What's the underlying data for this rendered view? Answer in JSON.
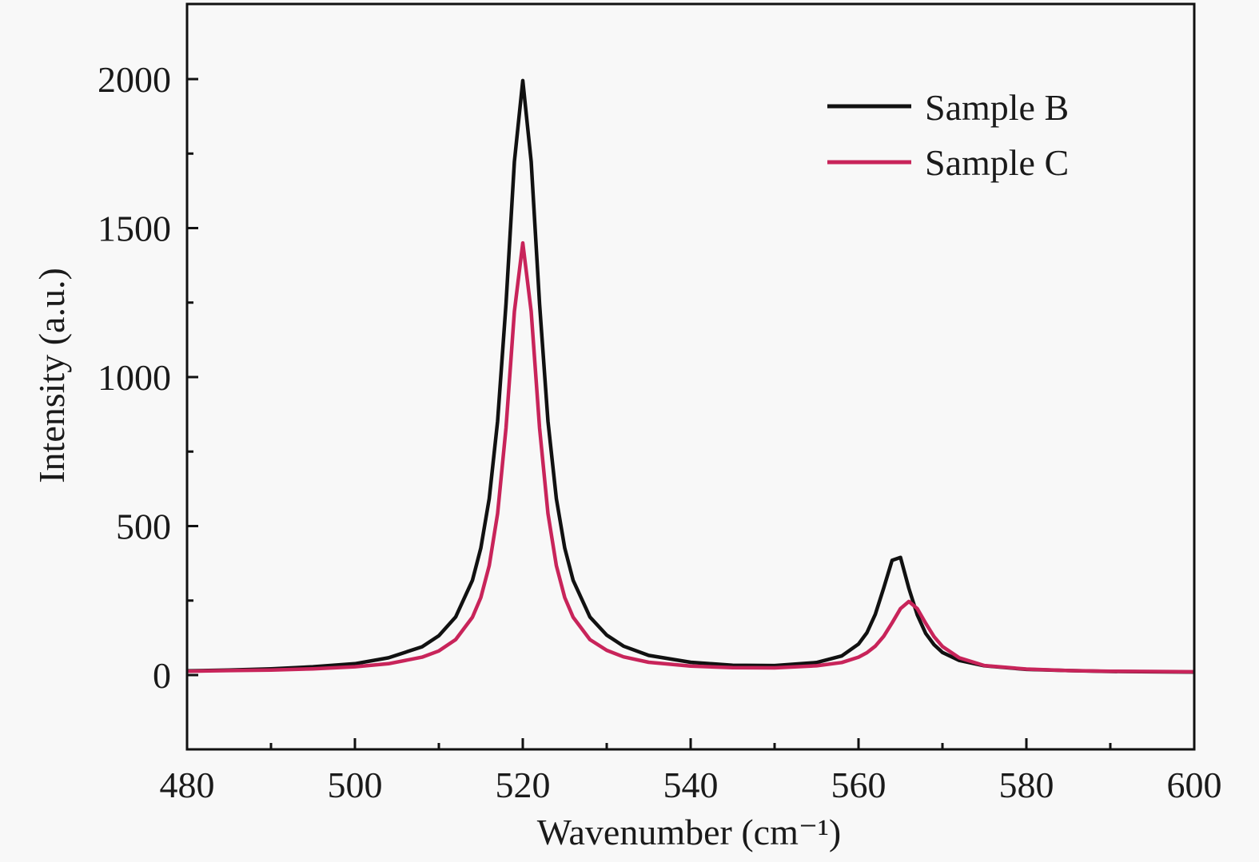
{
  "chart_data": {
    "type": "line",
    "title": "",
    "xlabel": "Wavenumber (cm⁻¹)",
    "ylabel": "Intensity (a.u.)",
    "xlim": [
      480,
      600
    ],
    "ylim": [
      -250,
      2250
    ],
    "xticks": [
      480,
      500,
      520,
      540,
      560,
      580,
      600
    ],
    "yticks": [
      0,
      500,
      1000,
      1500,
      2000
    ],
    "grid": false,
    "legend_position": "top-right",
    "x": [
      480,
      485,
      490,
      495,
      500,
      504,
      508,
      510,
      512,
      514,
      515,
      516,
      517,
      518,
      519,
      520,
      521,
      522,
      523,
      524,
      525,
      526,
      528,
      530,
      532,
      535,
      540,
      545,
      550,
      555,
      558,
      560,
      561,
      562,
      563,
      564,
      565,
      566,
      567,
      568,
      569,
      570,
      572,
      575,
      580,
      585,
      590,
      595,
      600
    ],
    "series": [
      {
        "name": "Sample B",
        "color": "#111111",
        "values": [
          14,
          17,
          21,
          28,
          38,
          58,
          95,
          132,
          195,
          318,
          426,
          592,
          852,
          1245,
          1723,
          1995,
          1723,
          1245,
          852,
          592,
          426,
          318,
          195,
          134,
          97,
          66,
          43,
          33,
          32,
          42,
          64,
          104,
          142,
          204,
          292,
          385,
          395,
          291,
          202,
          140,
          102,
          76,
          49,
          31,
          19,
          15,
          12,
          11,
          10
        ]
      },
      {
        "name": "Sample C",
        "color": "#c8245a",
        "values": [
          13,
          15,
          17,
          21,
          28,
          38,
          60,
          81,
          119,
          194,
          260,
          367,
          542,
          829,
          1220,
          1450,
          1220,
          829,
          542,
          367,
          260,
          194,
          119,
          83,
          61,
          43,
          30,
          25,
          24,
          31,
          42,
          60,
          75,
          97,
          130,
          175,
          223,
          247,
          223,
          174,
          129,
          96,
          58,
          32,
          20,
          15,
          13,
          12,
          11
        ]
      }
    ]
  }
}
